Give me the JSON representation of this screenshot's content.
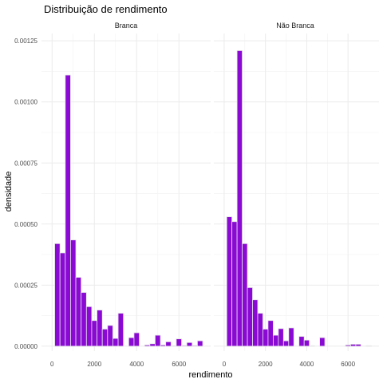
{
  "chart_data": {
    "type": "bar",
    "title": "Distribuição de rendimento",
    "xlabel": "rendimento",
    "ylabel": "densidade",
    "xlim": [
      -500,
      7500
    ],
    "ylim": [
      -2e-05,
      0.00128
    ],
    "bin_width": 250,
    "x_ticks": [
      0,
      2000,
      4000,
      6000
    ],
    "x_tick_labels": [
      "0",
      "2000",
      "4000",
      "6000"
    ],
    "y_ticks": [
      0,
      0.00025,
      0.0005,
      0.00075,
      0.001,
      0.00125
    ],
    "y_tick_labels": [
      "0.00000",
      "0.00025",
      "0.00050",
      "0.00075",
      "0.00100",
      "0.00125"
    ],
    "grid": true,
    "fill_color": "#8a0ad4",
    "panels": [
      {
        "name": "Branca",
        "bins": [
          {
            "x": 250,
            "y": 0.00042
          },
          {
            "x": 500,
            "y": 0.000382
          },
          {
            "x": 750,
            "y": 0.00111
          },
          {
            "x": 1000,
            "y": 0.000435
          },
          {
            "x": 1250,
            "y": 0.000282
          },
          {
            "x": 1500,
            "y": 0.00022
          },
          {
            "x": 1750,
            "y": 0.000162
          },
          {
            "x": 2000,
            "y": 0.000105
          },
          {
            "x": 2250,
            "y": 0.000148
          },
          {
            "x": 2500,
            "y": 7e-05
          },
          {
            "x": 2750,
            "y": 8.5e-05
          },
          {
            "x": 3000,
            "y": 3.2e-05
          },
          {
            "x": 3250,
            "y": 0.000135
          },
          {
            "x": 3500,
            "y": 0.0
          },
          {
            "x": 3750,
            "y": 3.5e-05
          },
          {
            "x": 4000,
            "y": 5.5e-05
          },
          {
            "x": 4250,
            "y": 0.0
          },
          {
            "x": 4500,
            "y": 5e-06
          },
          {
            "x": 4750,
            "y": 1e-05
          },
          {
            "x": 5000,
            "y": 4.5e-05
          },
          {
            "x": 5250,
            "y": 5e-06
          },
          {
            "x": 5500,
            "y": 1.8e-05
          },
          {
            "x": 5750,
            "y": 2e-06
          },
          {
            "x": 6000,
            "y": 3e-05
          },
          {
            "x": 6250,
            "y": 3e-06
          },
          {
            "x": 6500,
            "y": 1.5e-05
          },
          {
            "x": 6750,
            "y": 3e-06
          },
          {
            "x": 7000,
            "y": 2.2e-05
          }
        ]
      },
      {
        "name": "Não Branca",
        "bins": [
          {
            "x": 250,
            "y": 0.00053
          },
          {
            "x": 500,
            "y": 0.00051
          },
          {
            "x": 750,
            "y": 0.00121
          },
          {
            "x": 1000,
            "y": 0.00042
          },
          {
            "x": 1250,
            "y": 0.00024
          },
          {
            "x": 1500,
            "y": 0.00019
          },
          {
            "x": 1750,
            "y": 0.000135
          },
          {
            "x": 2000,
            "y": 7e-05
          },
          {
            "x": 2250,
            "y": 0.000105
          },
          {
            "x": 2500,
            "y": 4.5e-05
          },
          {
            "x": 2750,
            "y": 7.2e-05
          },
          {
            "x": 3000,
            "y": 2.2e-05
          },
          {
            "x": 3250,
            "y": 7.5e-05
          },
          {
            "x": 3500,
            "y": 0.0
          },
          {
            "x": 3750,
            "y": 4e-05
          },
          {
            "x": 4000,
            "y": 2.5e-05
          },
          {
            "x": 4250,
            "y": 2e-06
          },
          {
            "x": 4500,
            "y": 0.0
          },
          {
            "x": 4750,
            "y": 3.5e-05
          },
          {
            "x": 5000,
            "y": 0.0
          },
          {
            "x": 5250,
            "y": 0.0
          },
          {
            "x": 5500,
            "y": 0.0
          },
          {
            "x": 5750,
            "y": 0.0
          },
          {
            "x": 6000,
            "y": 5e-06
          },
          {
            "x": 6250,
            "y": 8e-06
          },
          {
            "x": 6500,
            "y": 8e-06
          },
          {
            "x": 6750,
            "y": 0.0
          },
          {
            "x": 7000,
            "y": 2e-06
          }
        ]
      }
    ]
  }
}
